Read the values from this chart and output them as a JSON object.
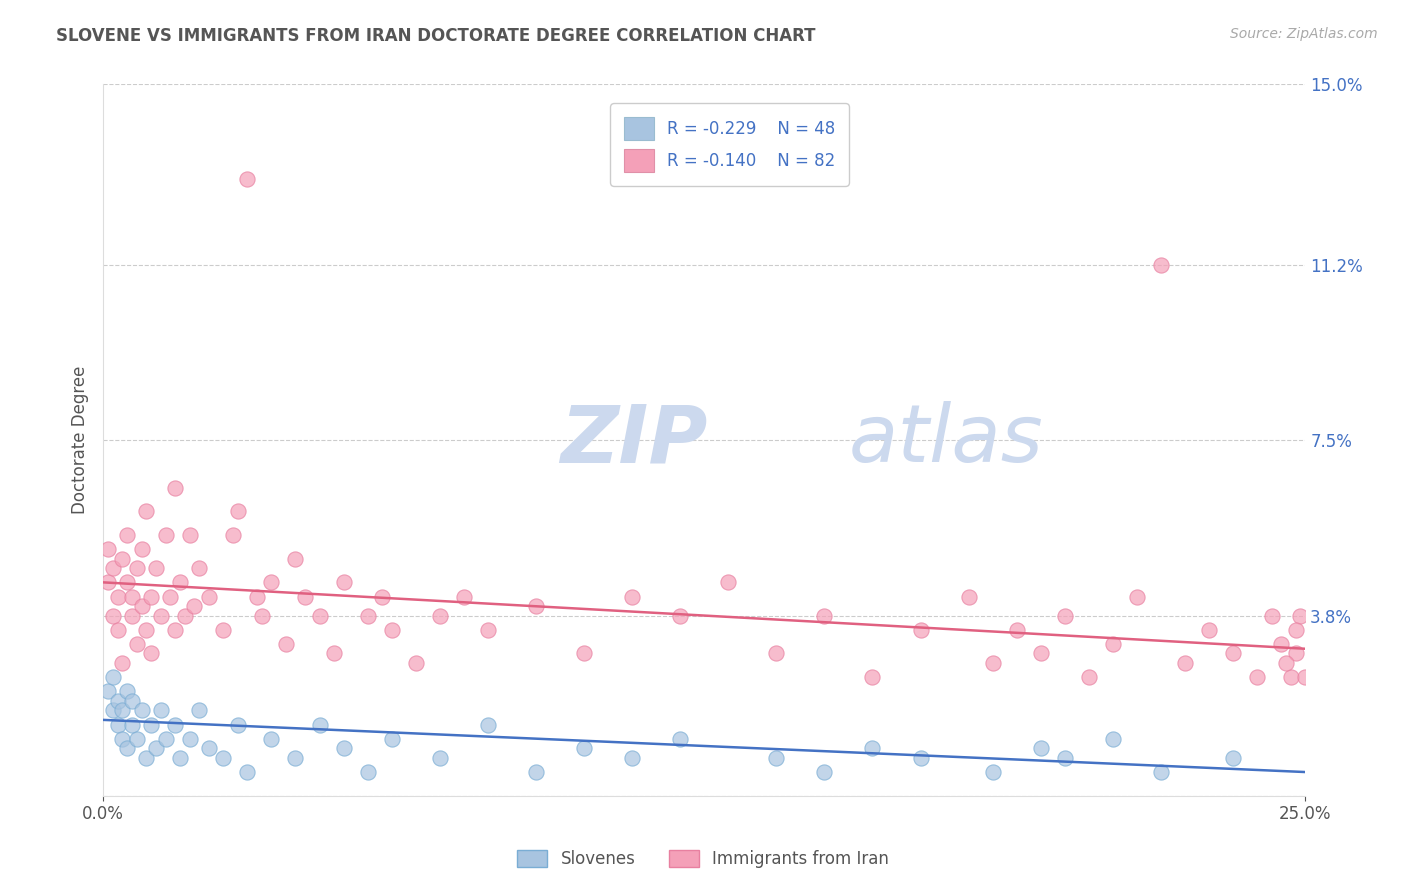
{
  "title": "SLOVENE VS IMMIGRANTS FROM IRAN DOCTORATE DEGREE CORRELATION CHART",
  "source_text": "Source: ZipAtlas.com",
  "ylabel": "Doctorate Degree",
  "xlim": [
    0.0,
    0.25
  ],
  "ylim": [
    0.0,
    0.15
  ],
  "grid_color": "#cccccc",
  "background_color": "#ffffff",
  "slovene_color": "#a8c4e0",
  "slovene_edge_color": "#7aadd4",
  "iran_color": "#f4a0b8",
  "iran_edge_color": "#e880a0",
  "slovene_line_color": "#4472c4",
  "iran_line_color": "#e06080",
  "tick_color": "#4472c4",
  "title_color": "#555555",
  "source_color": "#aaaaaa",
  "ylabel_color": "#555555",
  "watermark_color": "#ccd9ee",
  "legend_text_color": "#4472c4",
  "slovene_line_start_y": 0.016,
  "slovene_line_end_y": 0.005,
  "iran_line_start_y": 0.045,
  "iran_line_end_y": 0.031,
  "slovene_x": [
    0.001,
    0.002,
    0.002,
    0.003,
    0.003,
    0.004,
    0.004,
    0.005,
    0.005,
    0.006,
    0.006,
    0.007,
    0.008,
    0.009,
    0.01,
    0.011,
    0.012,
    0.013,
    0.015,
    0.016,
    0.018,
    0.02,
    0.022,
    0.025,
    0.028,
    0.03,
    0.035,
    0.04,
    0.045,
    0.05,
    0.055,
    0.06,
    0.07,
    0.08,
    0.09,
    0.1,
    0.11,
    0.12,
    0.14,
    0.15,
    0.16,
    0.17,
    0.185,
    0.195,
    0.2,
    0.21,
    0.22,
    0.235
  ],
  "slovene_y": [
    0.022,
    0.018,
    0.025,
    0.015,
    0.02,
    0.012,
    0.018,
    0.022,
    0.01,
    0.015,
    0.02,
    0.012,
    0.018,
    0.008,
    0.015,
    0.01,
    0.018,
    0.012,
    0.015,
    0.008,
    0.012,
    0.018,
    0.01,
    0.008,
    0.015,
    0.005,
    0.012,
    0.008,
    0.015,
    0.01,
    0.005,
    0.012,
    0.008,
    0.015,
    0.005,
    0.01,
    0.008,
    0.012,
    0.008,
    0.005,
    0.01,
    0.008,
    0.005,
    0.01,
    0.008,
    0.012,
    0.005,
    0.008
  ],
  "iran_x": [
    0.001,
    0.001,
    0.002,
    0.002,
    0.003,
    0.003,
    0.004,
    0.004,
    0.005,
    0.005,
    0.006,
    0.006,
    0.007,
    0.007,
    0.008,
    0.008,
    0.009,
    0.009,
    0.01,
    0.01,
    0.011,
    0.012,
    0.013,
    0.014,
    0.015,
    0.015,
    0.016,
    0.017,
    0.018,
    0.019,
    0.02,
    0.022,
    0.025,
    0.027,
    0.028,
    0.03,
    0.032,
    0.033,
    0.035,
    0.038,
    0.04,
    0.042,
    0.045,
    0.048,
    0.05,
    0.055,
    0.058,
    0.06,
    0.065,
    0.07,
    0.075,
    0.08,
    0.09,
    0.1,
    0.11,
    0.12,
    0.13,
    0.14,
    0.15,
    0.16,
    0.17,
    0.18,
    0.185,
    0.19,
    0.195,
    0.2,
    0.205,
    0.21,
    0.215,
    0.22,
    0.225,
    0.23,
    0.235,
    0.24,
    0.243,
    0.245,
    0.247,
    0.248,
    0.249,
    0.25,
    0.248,
    0.246
  ],
  "iran_y": [
    0.045,
    0.052,
    0.038,
    0.048,
    0.042,
    0.035,
    0.05,
    0.028,
    0.045,
    0.055,
    0.038,
    0.042,
    0.048,
    0.032,
    0.04,
    0.052,
    0.035,
    0.06,
    0.042,
    0.03,
    0.048,
    0.038,
    0.055,
    0.042,
    0.035,
    0.065,
    0.045,
    0.038,
    0.055,
    0.04,
    0.048,
    0.042,
    0.035,
    0.055,
    0.06,
    0.13,
    0.042,
    0.038,
    0.045,
    0.032,
    0.05,
    0.042,
    0.038,
    0.03,
    0.045,
    0.038,
    0.042,
    0.035,
    0.028,
    0.038,
    0.042,
    0.035,
    0.04,
    0.03,
    0.042,
    0.038,
    0.045,
    0.03,
    0.038,
    0.025,
    0.035,
    0.042,
    0.028,
    0.035,
    0.03,
    0.038,
    0.025,
    0.032,
    0.042,
    0.112,
    0.028,
    0.035,
    0.03,
    0.025,
    0.038,
    0.032,
    0.025,
    0.03,
    0.038,
    0.025,
    0.035,
    0.028
  ]
}
